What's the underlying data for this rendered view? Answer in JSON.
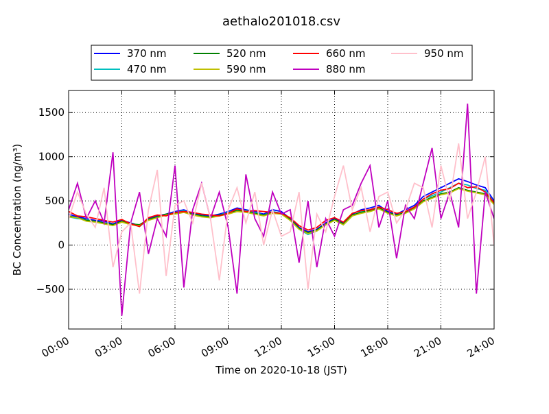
{
  "chart_data": {
    "type": "line",
    "title": "aethalo201018.csv",
    "x_label": "Time on 2020-10-18 (JST)",
    "y_label": "BC Concentration (ng/m³)",
    "x": [
      0,
      0.5,
      1,
      1.5,
      2,
      2.5,
      3,
      3.5,
      4,
      4.5,
      5,
      5.5,
      6,
      6.5,
      7,
      7.5,
      8,
      8.5,
      9,
      9.5,
      10,
      10.5,
      11,
      11.5,
      12,
      12.5,
      13,
      13.5,
      14,
      14.5,
      15,
      15.5,
      16,
      16.5,
      17,
      17.5,
      18,
      18.5,
      19,
      19.5,
      20,
      20.5,
      21,
      21.5,
      22,
      22.5,
      23,
      23.5,
      24
    ],
    "xlim": [
      0,
      24
    ],
    "xticks": [
      {
        "value": 0,
        "label": "00:00"
      },
      {
        "value": 3,
        "label": "03:00"
      },
      {
        "value": 6,
        "label": "06:00"
      },
      {
        "value": 9,
        "label": "09:00"
      },
      {
        "value": 12,
        "label": "12:00"
      },
      {
        "value": 15,
        "label": "15:00"
      },
      {
        "value": 18,
        "label": "18:00"
      },
      {
        "value": 21,
        "label": "21:00"
      },
      {
        "value": 24,
        "label": "24:00"
      }
    ],
    "ylim": [
      -950,
      1750
    ],
    "yticks": [
      {
        "value": -500,
        "label": "−500"
      },
      0,
      500,
      1000,
      1500
    ],
    "grid": true,
    "legend": "top",
    "series": [
      {
        "name": "370 nm",
        "color": "#0000ff",
        "values": [
          350,
          320,
          300,
          280,
          270,
          240,
          280,
          250,
          220,
          300,
          330,
          350,
          380,
          400,
          360,
          340,
          330,
          350,
          380,
          420,
          400,
          380,
          350,
          400,
          380,
          300,
          200,
          150,
          180,
          250,
          300,
          250,
          350,
          400,
          420,
          450,
          380,
          350,
          400,
          450,
          550,
          600,
          650,
          700,
          750,
          720,
          680,
          650,
          500
        ]
      },
      {
        "name": "470 nm",
        "color": "#00bfbf",
        "values": [
          320,
          300,
          290,
          260,
          250,
          230,
          260,
          240,
          210,
          290,
          320,
          340,
          370,
          390,
          350,
          330,
          320,
          340,
          370,
          400,
          390,
          370,
          340,
          380,
          360,
          280,
          180,
          120,
          160,
          230,
          280,
          230,
          330,
          380,
          400,
          430,
          360,
          330,
          380,
          430,
          520,
          560,
          600,
          650,
          700,
          680,
          640,
          620,
          480
        ]
      },
      {
        "name": "520 nm",
        "color": "#008000",
        "values": [
          330,
          310,
          280,
          270,
          250,
          230,
          270,
          240,
          230,
          290,
          320,
          350,
          360,
          380,
          350,
          330,
          320,
          340,
          360,
          390,
          380,
          360,
          340,
          370,
          360,
          290,
          190,
          140,
          170,
          240,
          290,
          240,
          340,
          370,
          390,
          420,
          370,
          340,
          370,
          420,
          500,
          540,
          580,
          600,
          650,
          620,
          600,
          580,
          470
        ]
      },
      {
        "name": "590 nm",
        "color": "#bfbf00",
        "values": [
          320,
          310,
          270,
          260,
          240,
          220,
          260,
          230,
          220,
          280,
          310,
          340,
          350,
          370,
          340,
          320,
          310,
          330,
          350,
          380,
          370,
          350,
          330,
          360,
          350,
          280,
          180,
          130,
          160,
          230,
          280,
          230,
          330,
          360,
          380,
          410,
          360,
          330,
          360,
          410,
          490,
          530,
          570,
          590,
          640,
          610,
          590,
          570,
          460
        ]
      },
      {
        "name": "660 nm",
        "color": "#ff0000",
        "values": [
          380,
          330,
          320,
          300,
          280,
          260,
          290,
          240,
          210,
          310,
          340,
          330,
          370,
          380,
          370,
          350,
          340,
          330,
          360,
          410,
          380,
          390,
          380,
          370,
          360,
          310,
          220,
          170,
          200,
          280,
          310,
          260,
          360,
          390,
          400,
          430,
          400,
          360,
          380,
          430,
          520,
          580,
          620,
          640,
          700,
          650,
          660,
          600,
          480
        ]
      },
      {
        "name": "880 nm",
        "color": "#bf00bf",
        "values": [
          400,
          700,
          300,
          500,
          250,
          1050,
          -800,
          250,
          600,
          -100,
          300,
          100,
          900,
          -480,
          400,
          700,
          300,
          600,
          200,
          -550,
          800,
          300,
          100,
          600,
          350,
          400,
          -200,
          500,
          -250,
          300,
          100,
          400,
          450,
          700,
          900,
          200,
          500,
          -150,
          450,
          300,
          700,
          1100,
          300,
          600,
          200,
          1600,
          -550,
          600,
          300
        ]
      },
      {
        "name": "950 nm",
        "color": "#ffc0cb",
        "values": [
          300,
          600,
          350,
          200,
          650,
          -250,
          150,
          250,
          -550,
          400,
          850,
          -350,
          450,
          500,
          250,
          700,
          300,
          -400,
          400,
          650,
          250,
          600,
          0,
          400,
          100,
          150,
          600,
          -500,
          350,
          150,
          550,
          900,
          400,
          650,
          150,
          550,
          600,
          250,
          400,
          700,
          650,
          200,
          900,
          500,
          1150,
          300,
          600,
          1000,
          0
        ]
      }
    ]
  }
}
